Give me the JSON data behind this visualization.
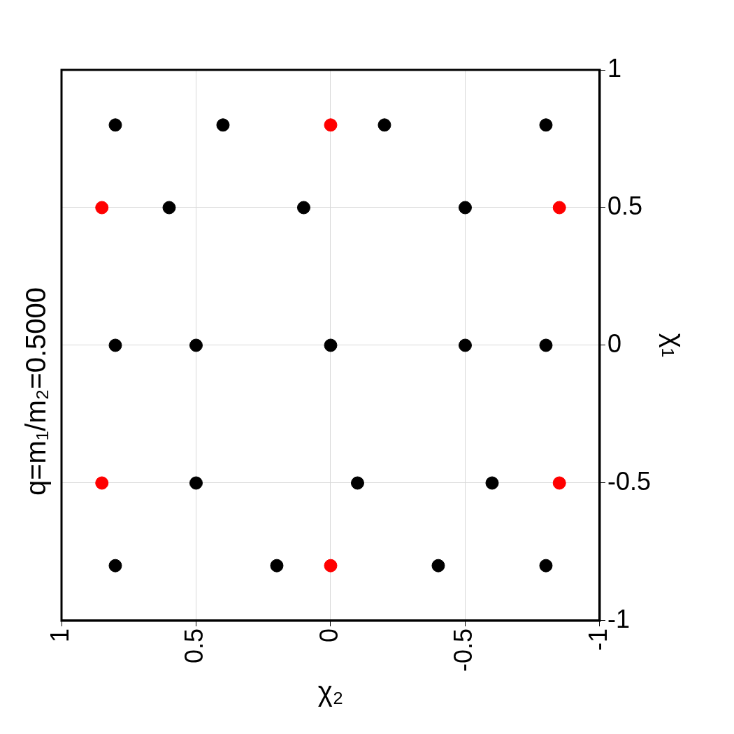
{
  "chart_data": {
    "type": "scatter",
    "title": "q=m₁/m₂=0.5000",
    "xlabel": "χ₂",
    "ylabel": "χ₁",
    "xlim": [
      1,
      -1
    ],
    "xticks": [
      1,
      0.5,
      0,
      -0.5,
      -1
    ],
    "ylim": [
      -1,
      1
    ],
    "yticks": [
      -1,
      -0.5,
      0,
      0.5,
      1
    ],
    "grid": true,
    "marker": "circle",
    "legend": false,
    "series": [
      {
        "color": "#000000",
        "x": [
          0.8,
          0.4,
          -0.2,
          -0.8,
          0.6,
          0.1,
          -0.5,
          0.8,
          0.5,
          0,
          -0.5,
          -0.8,
          0.5,
          -0.1,
          -0.6,
          0.8,
          0.2,
          -0.4,
          -0.8
        ],
        "values": [
          0.8,
          0.8,
          0.8,
          0.8,
          0.5,
          0.5,
          0.5,
          0,
          0,
          0,
          0,
          0,
          -0.5,
          -0.5,
          -0.5,
          -0.8,
          -0.8,
          -0.8,
          -0.8
        ]
      },
      {
        "color": "#ff0000",
        "x": [
          0,
          0.85,
          -0.85,
          0.85,
          -0.85,
          0
        ],
        "values": [
          0.8,
          0.5,
          0.5,
          -0.5,
          -0.5,
          -0.8
        ]
      }
    ]
  }
}
